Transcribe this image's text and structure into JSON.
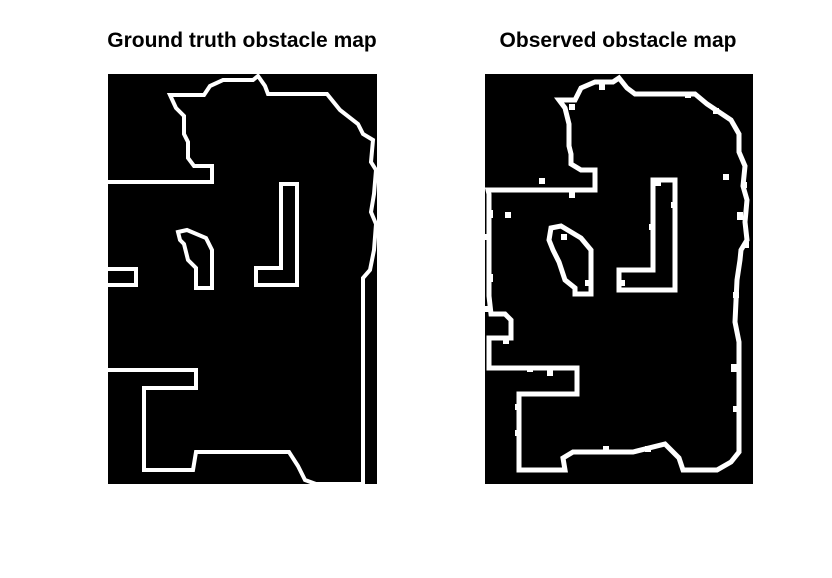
{
  "figure": {
    "panels": [
      {
        "title": "Ground truth obstacle map"
      },
      {
        "title": "Observed obstacle map"
      }
    ]
  },
  "colors": {
    "background": "#ffffff",
    "map_fill": "#000000",
    "obstacle": "#ffffff",
    "title": "#000000"
  }
}
